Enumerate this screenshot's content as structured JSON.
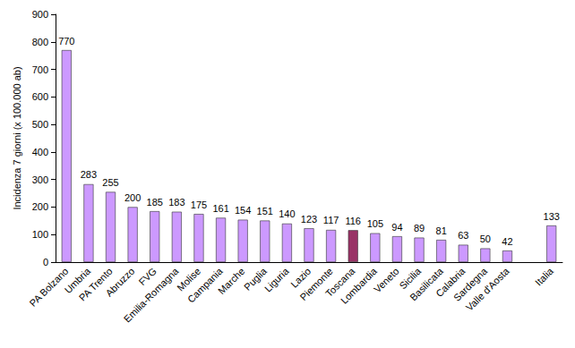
{
  "chart_data": {
    "type": "bar",
    "y_label": "Incidenza 7 giorni (x 100.000 ab)",
    "categories": [
      "PA Bolzano",
      "Umbria",
      "PA Trento",
      "Abruzzo",
      "FVG",
      "Emilia-Romagna",
      "Molise",
      "Campania",
      "Marche",
      "Puglia",
      "Liguria",
      "Lazio",
      "Piemonte",
      "Toscana",
      "Lombardia",
      "Veneto",
      "Sicilia",
      "Basilicata",
      "Calabria",
      "Sardegna",
      "Valle d'Aosta",
      null,
      "Italia"
    ],
    "values": [
      770,
      283,
      255,
      200,
      185,
      183,
      175,
      161,
      154,
      151,
      140,
      123,
      117,
      116,
      105,
      94,
      89,
      81,
      63,
      50,
      42,
      null,
      133
    ],
    "colors": [
      "#cc99ff",
      "#cc99ff",
      "#cc99ff",
      "#cc99ff",
      "#cc99ff",
      "#cc99ff",
      "#cc99ff",
      "#cc99ff",
      "#cc99ff",
      "#cc99ff",
      "#cc99ff",
      "#cc99ff",
      "#cc99ff",
      "#993366",
      "#cc99ff",
      "#cc99ff",
      "#cc99ff",
      "#cc99ff",
      "#cc99ff",
      "#cc99ff",
      "#cc99ff",
      "#cc99ff",
      "#cc99ff"
    ],
    "ylim": [
      0,
      900
    ],
    "yticks": [
      0,
      100,
      200,
      300,
      400,
      500,
      600,
      700,
      800,
      900
    ],
    "grid": false,
    "data_labels": true
  }
}
